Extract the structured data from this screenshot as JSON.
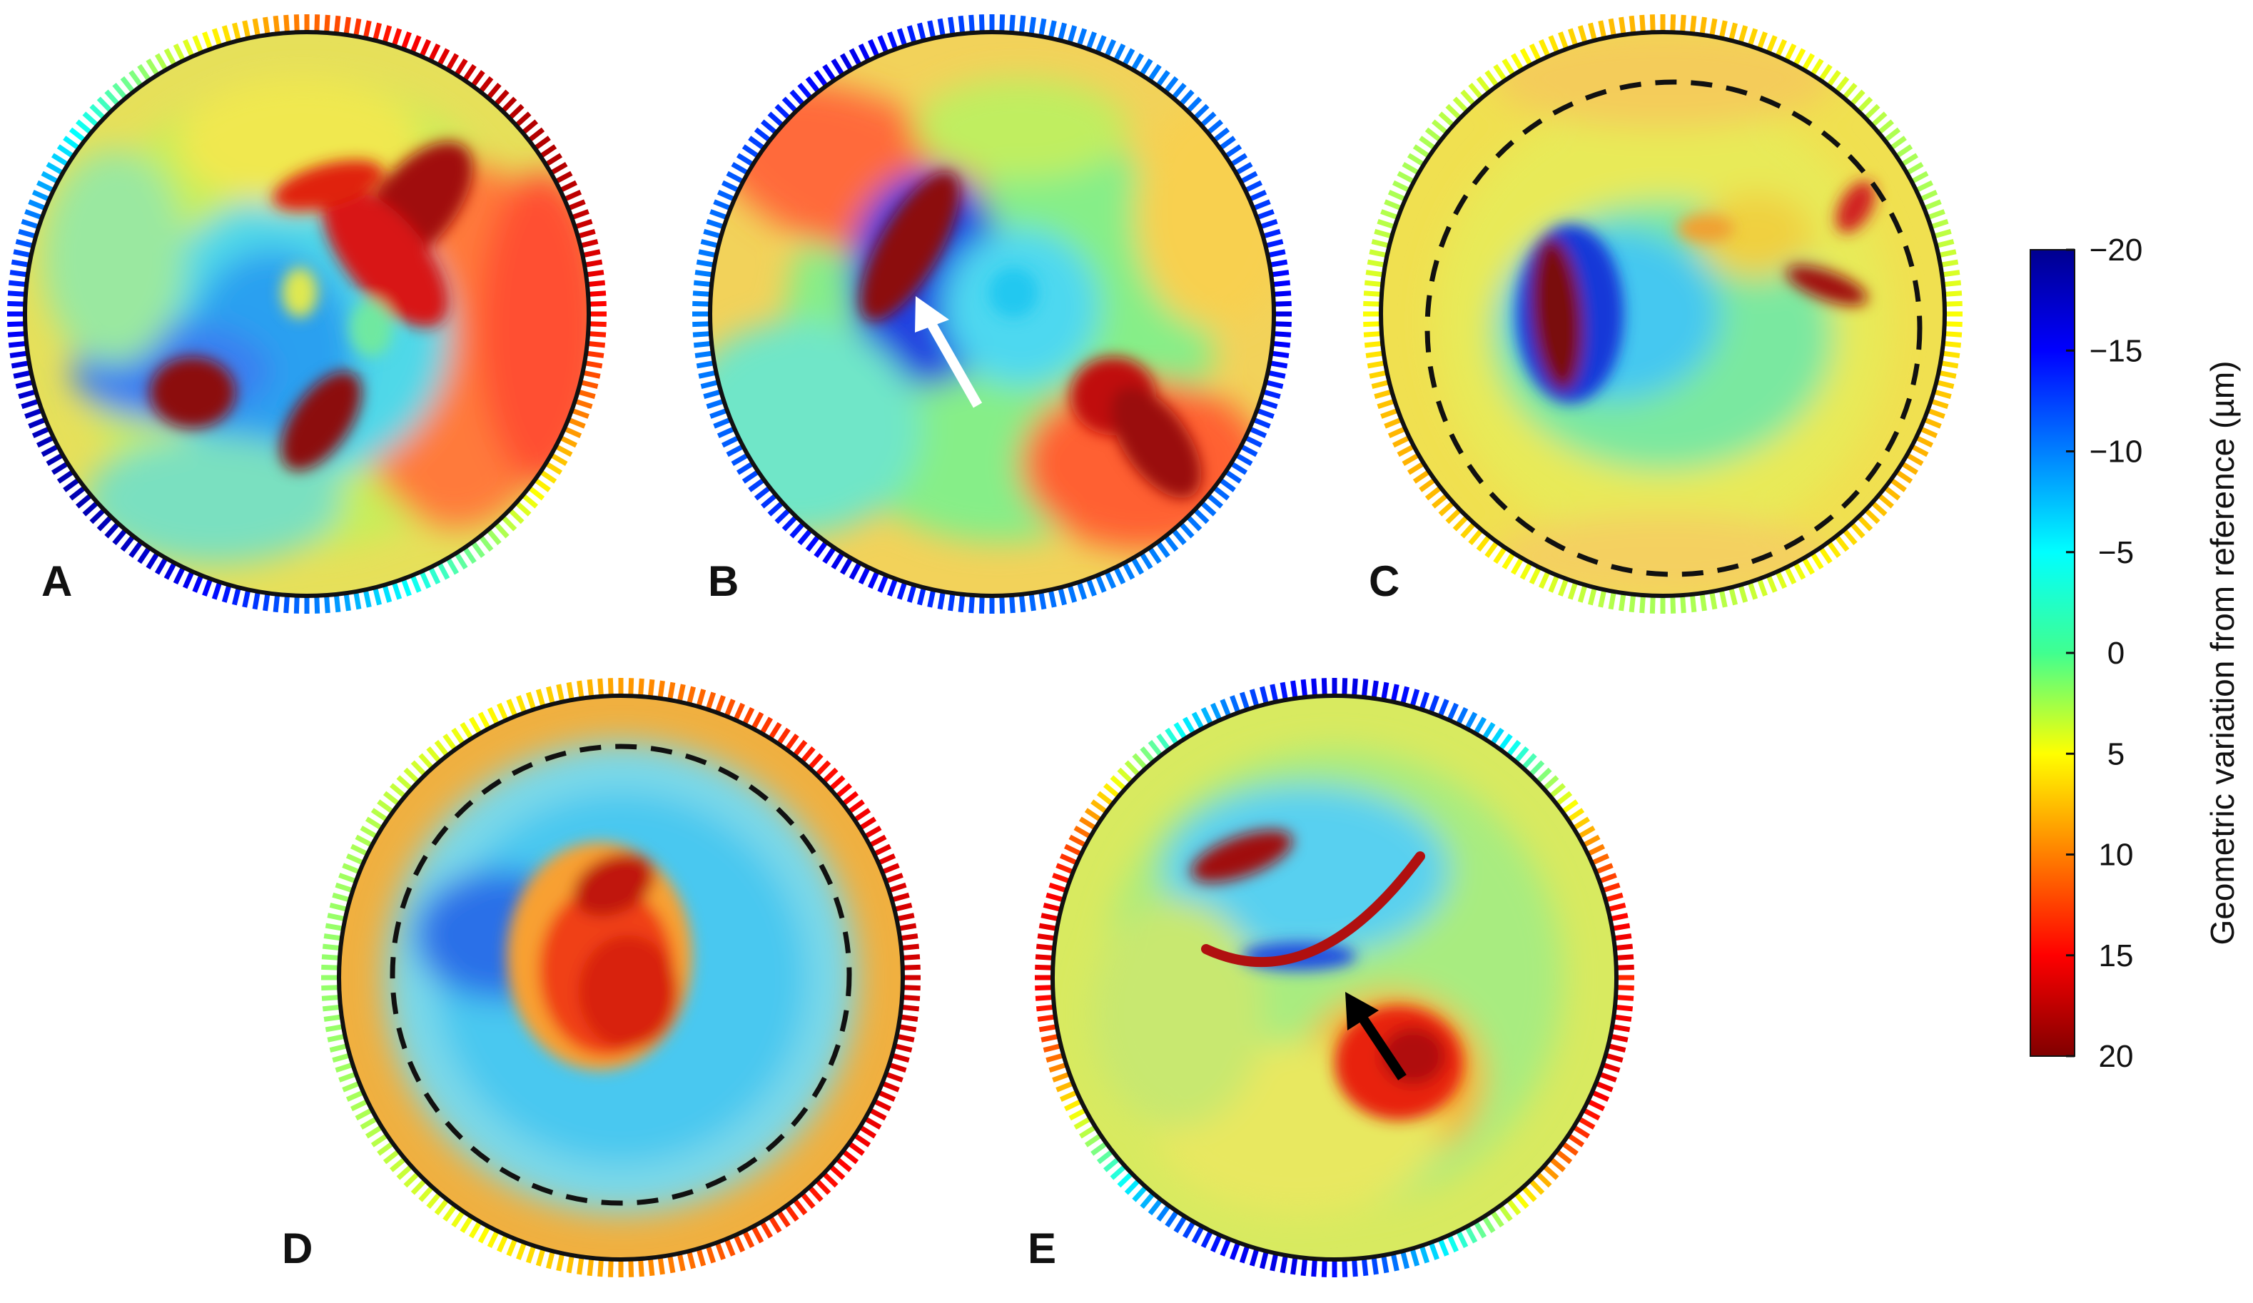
{
  "panels": [
    {
      "id": "A",
      "label": "A",
      "boundary": "solid",
      "arrow": null,
      "outer": "rainbow"
    },
    {
      "id": "B",
      "label": "B",
      "boundary": "solid",
      "arrow": "white",
      "outer": "blue"
    },
    {
      "id": "C",
      "label": "C",
      "boundary": "solid+dashed",
      "arrow": null,
      "outer": "yellow"
    },
    {
      "id": "D",
      "label": "D",
      "boundary": "solid+dashed",
      "arrow": null,
      "outer": "red"
    },
    {
      "id": "E",
      "label": "E",
      "boundary": "solid",
      "arrow": "black",
      "outer": "mixed"
    }
  ],
  "colorbar": {
    "title": "Geometric variation from reference (µm)",
    "ticks": [
      "−20",
      "−15",
      "−10",
      "−5",
      "0",
      "5",
      "10",
      "15",
      "20"
    ],
    "min": -20,
    "max": 20,
    "colormap": "jet",
    "low_color": "#00008f",
    "high_color": "#800000"
  },
  "colors": {
    "boundary": "#111111",
    "arrow_white": "#ffffff",
    "arrow_black": "#000000"
  }
}
